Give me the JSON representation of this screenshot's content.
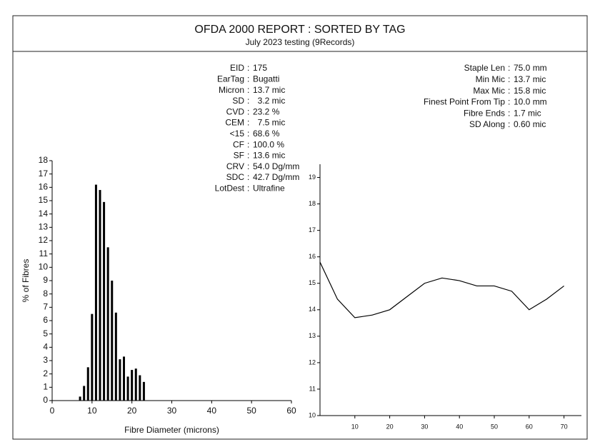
{
  "header": {
    "title": "OFDA 2000 REPORT : SORTED BY TAG",
    "subtitle": "July 2023 testing (9Records)"
  },
  "stats_left": [
    {
      "label": "EID",
      "value": "175"
    },
    {
      "label": "EarTag",
      "value": "Bugatti"
    },
    {
      "label": "Micron",
      "value": "13.7 mic"
    },
    {
      "label": "SD",
      "value": "  3.2 mic"
    },
    {
      "label": "CVD",
      "value": "23.2 %"
    },
    {
      "label": "CEM",
      "value": "  7.5 mic"
    },
    {
      "label": "<15",
      "value": "68.6 %"
    },
    {
      "label": "CF",
      "value": "100.0 %"
    },
    {
      "label": "SF",
      "value": "13.6 mic"
    },
    {
      "label": "CRV",
      "value": "54.0 Dg/mm"
    },
    {
      "label": "SDC",
      "value": "42.7 Dg/mm"
    },
    {
      "label": "LotDest",
      "value": "Ultrafine"
    }
  ],
  "stats_right": [
    {
      "label": "Staple Len",
      "value": "75.0 mm"
    },
    {
      "label": "Min Mic",
      "value": "13.7 mic"
    },
    {
      "label": "Max Mic",
      "value": "15.8 mic"
    },
    {
      "label": "Finest Point From Tip",
      "value": "10.0 mm"
    },
    {
      "label": "Fibre Ends",
      "value": "1.7 mic"
    },
    {
      "label": "SD Along",
      "value": "0.60 mic"
    }
  ],
  "chart_data": [
    {
      "type": "bar",
      "x_label": "Fibre Diameter (microns)",
      "y_label": "% of Fibres",
      "x": [
        7,
        8,
        9,
        10,
        11,
        12,
        13,
        14,
        15,
        16,
        17,
        18,
        19,
        20,
        21,
        22,
        23
      ],
      "values": [
        0.3,
        1.1,
        2.5,
        6.5,
        16.2,
        15.8,
        14.9,
        11.5,
        9.0,
        6.6,
        3.1,
        3.3,
        1.8,
        2.3,
        2.4,
        1.9,
        1.4
      ],
      "color": "#000000",
      "xlim": [
        0,
        60
      ],
      "xticks": [
        0,
        10,
        20,
        30,
        40,
        50,
        60
      ],
      "ylim": [
        0,
        18
      ],
      "yticks": [
        0,
        1,
        2,
        3,
        4,
        5,
        6,
        7,
        8,
        9,
        10,
        11,
        12,
        13,
        14,
        15,
        16,
        17,
        18
      ],
      "grid": false
    },
    {
      "type": "line",
      "x": [
        0,
        5,
        10,
        15,
        20,
        25,
        30,
        35,
        40,
        45,
        50,
        55,
        60,
        65,
        70
      ],
      "values": [
        15.8,
        14.4,
        13.7,
        13.8,
        14.0,
        14.5,
        15.0,
        15.2,
        15.1,
        14.9,
        14.9,
        14.7,
        14.0,
        14.4,
        14.9
      ],
      "color": "#000000",
      "xlim": [
        0,
        75
      ],
      "xticks": [
        10,
        20,
        30,
        40,
        50,
        60,
        70
      ],
      "ylim": [
        10,
        19.5
      ],
      "yticks": [
        10,
        11,
        12,
        13,
        14,
        15,
        16,
        17,
        18,
        19
      ],
      "grid": false
    }
  ]
}
